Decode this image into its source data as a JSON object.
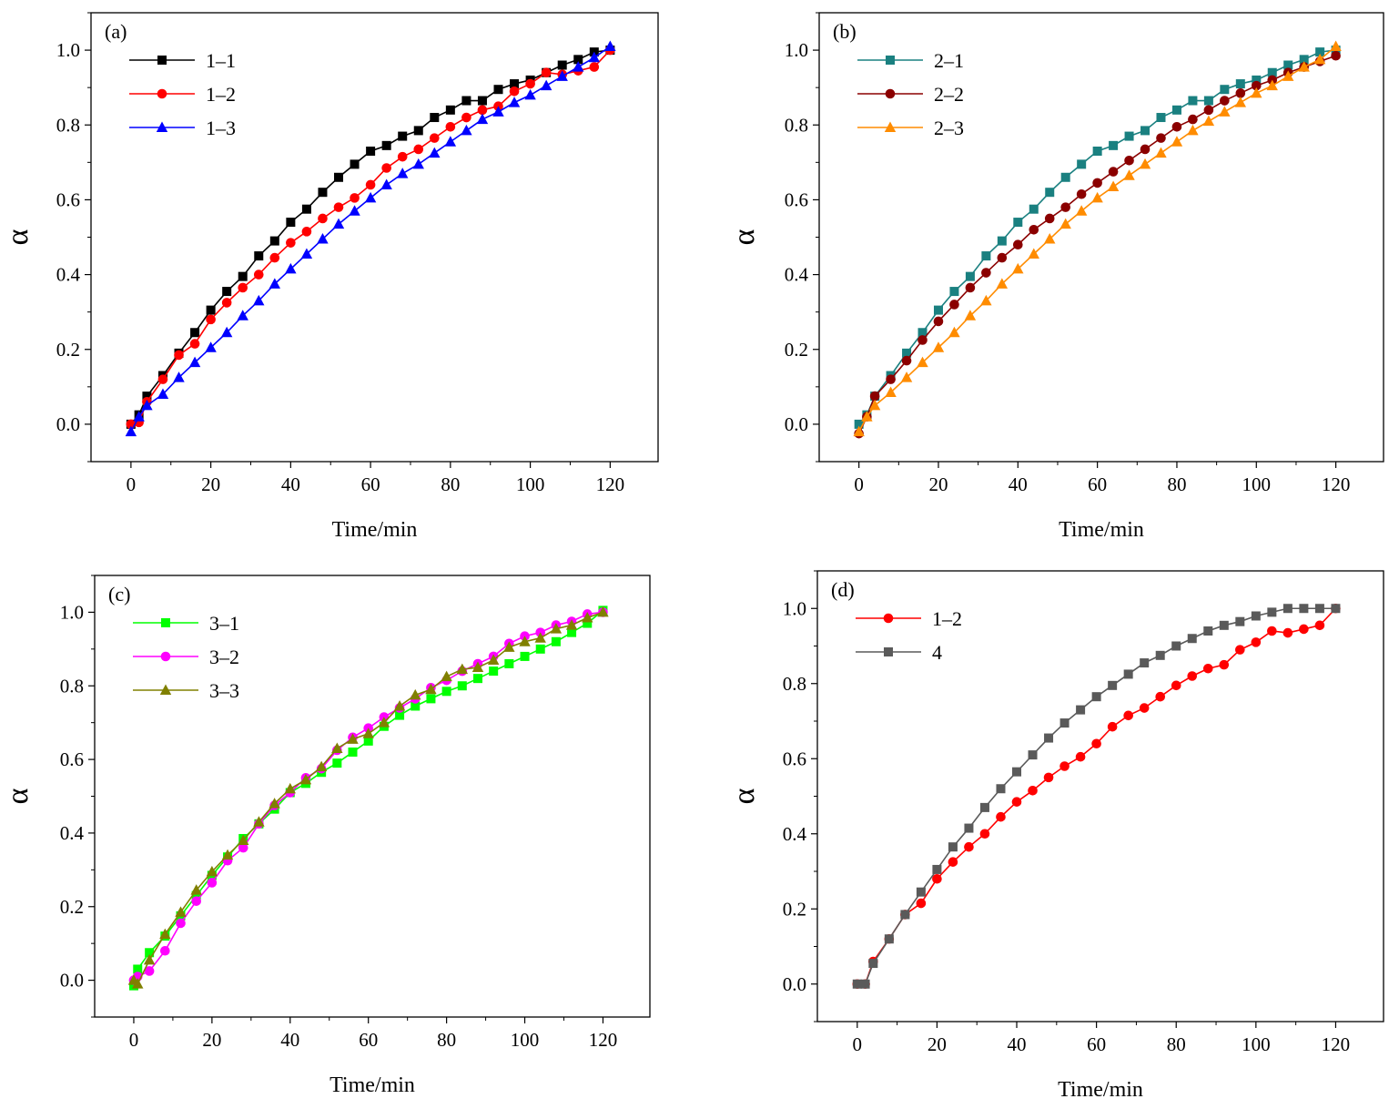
{
  "chart_data": [
    {
      "type": "line",
      "panel_label": "(a)",
      "xlabel": "Time/min",
      "ylabel": "α",
      "xlim": [
        -10,
        132
      ],
      "ylim": [
        -0.1,
        1.1
      ],
      "xticks": [
        "0",
        "20",
        "40",
        "60",
        "80",
        "100",
        "120"
      ],
      "yticks": [
        "0.0",
        "0.2",
        "0.4",
        "0.6",
        "0.8",
        "1.0"
      ],
      "legend_position": "top-left",
      "series": [
        {
          "name": "1–1",
          "color": "#000000",
          "marker": "square",
          "x": [
            0,
            2,
            4,
            8,
            12,
            16,
            20,
            24,
            28,
            32,
            36,
            40,
            44,
            48,
            52,
            56,
            60,
            64,
            68,
            72,
            76,
            80,
            84,
            88,
            92,
            96,
            100,
            104,
            108,
            112,
            116,
            120
          ],
          "y": [
            0.0,
            0.025,
            0.075,
            0.13,
            0.19,
            0.245,
            0.305,
            0.355,
            0.395,
            0.45,
            0.49,
            0.54,
            0.575,
            0.62,
            0.66,
            0.695,
            0.73,
            0.745,
            0.77,
            0.785,
            0.82,
            0.84,
            0.865,
            0.865,
            0.895,
            0.91,
            0.92,
            0.94,
            0.96,
            0.975,
            0.995,
            1.0
          ]
        },
        {
          "name": "1–2",
          "color": "#ff0000",
          "marker": "circle",
          "x": [
            0,
            2,
            4,
            8,
            12,
            16,
            20,
            24,
            28,
            32,
            36,
            40,
            44,
            48,
            52,
            56,
            60,
            64,
            68,
            72,
            76,
            80,
            84,
            88,
            92,
            96,
            100,
            104,
            108,
            112,
            116,
            120
          ],
          "y": [
            0.0,
            0.005,
            0.06,
            0.12,
            0.185,
            0.215,
            0.28,
            0.325,
            0.365,
            0.4,
            0.445,
            0.485,
            0.515,
            0.55,
            0.58,
            0.605,
            0.64,
            0.685,
            0.715,
            0.735,
            0.765,
            0.795,
            0.82,
            0.84,
            0.85,
            0.89,
            0.91,
            0.94,
            0.935,
            0.945,
            0.955,
            1.0
          ]
        },
        {
          "name": "1–3",
          "color": "#0000ff",
          "marker": "triangle",
          "x": [
            0,
            2,
            4,
            8,
            12,
            16,
            20,
            24,
            28,
            32,
            36,
            40,
            44,
            48,
            52,
            56,
            60,
            64,
            68,
            72,
            76,
            80,
            84,
            88,
            92,
            96,
            100,
            104,
            108,
            112,
            116,
            120
          ],
          "y": [
            -0.02,
            0.02,
            0.05,
            0.08,
            0.125,
            0.165,
            0.205,
            0.245,
            0.29,
            0.33,
            0.375,
            0.415,
            0.455,
            0.495,
            0.535,
            0.57,
            0.605,
            0.64,
            0.67,
            0.695,
            0.725,
            0.755,
            0.785,
            0.815,
            0.835,
            0.86,
            0.88,
            0.905,
            0.93,
            0.955,
            0.98,
            1.01
          ]
        }
      ]
    },
    {
      "type": "line",
      "panel_label": "(b)",
      "xlabel": "Time/min",
      "ylabel": "α",
      "xlim": [
        -10,
        132
      ],
      "ylim": [
        -0.1,
        1.1
      ],
      "xticks": [
        "0",
        "20",
        "40",
        "60",
        "80",
        "100",
        "120"
      ],
      "yticks": [
        "0.0",
        "0.2",
        "0.4",
        "0.6",
        "0.8",
        "1.0"
      ],
      "legend_position": "top-left",
      "series": [
        {
          "name": "2–1",
          "color": "#1a8080",
          "marker": "square",
          "x": [
            0,
            2,
            4,
            8,
            12,
            16,
            20,
            24,
            28,
            32,
            36,
            40,
            44,
            48,
            52,
            56,
            60,
            64,
            68,
            72,
            76,
            80,
            84,
            88,
            92,
            96,
            100,
            104,
            108,
            112,
            116,
            120
          ],
          "y": [
            0.0,
            0.025,
            0.075,
            0.13,
            0.19,
            0.245,
            0.305,
            0.355,
            0.395,
            0.45,
            0.49,
            0.54,
            0.575,
            0.62,
            0.66,
            0.695,
            0.73,
            0.745,
            0.77,
            0.785,
            0.82,
            0.84,
            0.865,
            0.865,
            0.895,
            0.91,
            0.92,
            0.94,
            0.96,
            0.975,
            0.995,
            1.0
          ]
        },
        {
          "name": "2–2",
          "color": "#8b0000",
          "marker": "circle",
          "x": [
            0,
            2,
            4,
            8,
            12,
            16,
            20,
            24,
            28,
            32,
            36,
            40,
            44,
            48,
            52,
            56,
            60,
            64,
            68,
            72,
            76,
            80,
            84,
            88,
            92,
            96,
            100,
            104,
            108,
            112,
            116,
            120
          ],
          "y": [
            -0.025,
            0.02,
            0.075,
            0.12,
            0.17,
            0.225,
            0.275,
            0.32,
            0.365,
            0.405,
            0.445,
            0.48,
            0.52,
            0.55,
            0.58,
            0.615,
            0.645,
            0.675,
            0.705,
            0.735,
            0.765,
            0.795,
            0.815,
            0.84,
            0.865,
            0.885,
            0.905,
            0.92,
            0.94,
            0.955,
            0.97,
            0.985
          ]
        },
        {
          "name": "2–3",
          "color": "#ff8c00",
          "marker": "triangle",
          "x": [
            0,
            2,
            4,
            8,
            12,
            16,
            20,
            24,
            28,
            32,
            36,
            40,
            44,
            48,
            52,
            56,
            60,
            64,
            68,
            72,
            76,
            80,
            84,
            88,
            92,
            96,
            100,
            104,
            108,
            112,
            116,
            120
          ],
          "y": [
            -0.02,
            0.02,
            0.05,
            0.085,
            0.125,
            0.165,
            0.205,
            0.245,
            0.29,
            0.33,
            0.375,
            0.415,
            0.455,
            0.495,
            0.535,
            0.57,
            0.605,
            0.635,
            0.665,
            0.695,
            0.725,
            0.755,
            0.785,
            0.81,
            0.835,
            0.86,
            0.885,
            0.905,
            0.93,
            0.955,
            0.975,
            1.01
          ]
        }
      ]
    },
    {
      "type": "line",
      "panel_label": "(c)",
      "xlabel": "Time/min",
      "ylabel": "α",
      "xlim": [
        -10,
        132
      ],
      "ylim": [
        -0.1,
        1.1
      ],
      "xticks": [
        "0",
        "20",
        "40",
        "60",
        "80",
        "100",
        "120"
      ],
      "yticks": [
        "0.0",
        "0.2",
        "0.4",
        "0.6",
        "0.8",
        "1.0"
      ],
      "legend_position": "top-left",
      "series": [
        {
          "name": "3–1",
          "color": "#00ff00",
          "marker": "square",
          "x": [
            0,
            1,
            4,
            8,
            12,
            16,
            20,
            24,
            28,
            32,
            36,
            40,
            44,
            48,
            52,
            56,
            60,
            64,
            68,
            72,
            76,
            80,
            84,
            88,
            92,
            96,
            100,
            104,
            108,
            112,
            116,
            120
          ],
          "y": [
            -0.015,
            0.03,
            0.075,
            0.12,
            0.175,
            0.23,
            0.285,
            0.335,
            0.385,
            0.425,
            0.465,
            0.51,
            0.535,
            0.565,
            0.59,
            0.62,
            0.65,
            0.69,
            0.72,
            0.745,
            0.765,
            0.785,
            0.8,
            0.82,
            0.84,
            0.86,
            0.88,
            0.9,
            0.92,
            0.945,
            0.97,
            1.005
          ]
        },
        {
          "name": "3–2",
          "color": "#ff00ff",
          "marker": "circle",
          "x": [
            0,
            1,
            4,
            8,
            12,
            16,
            20,
            24,
            28,
            32,
            36,
            40,
            44,
            48,
            52,
            56,
            60,
            64,
            68,
            72,
            76,
            80,
            84,
            88,
            92,
            96,
            100,
            104,
            108,
            112,
            116,
            120
          ],
          "y": [
            0.0,
            0.01,
            0.025,
            0.08,
            0.155,
            0.215,
            0.265,
            0.325,
            0.36,
            0.425,
            0.475,
            0.51,
            0.55,
            0.575,
            0.625,
            0.66,
            0.685,
            0.715,
            0.74,
            0.765,
            0.795,
            0.815,
            0.84,
            0.86,
            0.88,
            0.915,
            0.935,
            0.945,
            0.965,
            0.975,
            0.995,
            1.0
          ]
        },
        {
          "name": "3–3",
          "color": "#808000",
          "marker": "triangle",
          "x": [
            0,
            1,
            4,
            8,
            12,
            16,
            20,
            24,
            28,
            32,
            36,
            40,
            44,
            48,
            52,
            56,
            60,
            64,
            68,
            72,
            76,
            80,
            84,
            88,
            92,
            96,
            100,
            104,
            108,
            112,
            116,
            120
          ],
          "y": [
            0.0,
            -0.01,
            0.055,
            0.125,
            0.185,
            0.245,
            0.295,
            0.34,
            0.38,
            0.43,
            0.48,
            0.52,
            0.545,
            0.58,
            0.63,
            0.655,
            0.67,
            0.7,
            0.745,
            0.775,
            0.79,
            0.825,
            0.845,
            0.85,
            0.87,
            0.905,
            0.92,
            0.93,
            0.955,
            0.965,
            0.985,
            1.0
          ]
        }
      ]
    },
    {
      "type": "line",
      "panel_label": "(d)",
      "xlabel": "Time/min",
      "ylabel": "α",
      "xlim": [
        -10,
        132
      ],
      "ylim": [
        -0.1,
        1.1
      ],
      "xticks": [
        "0",
        "20",
        "40",
        "60",
        "80",
        "100",
        "120"
      ],
      "yticks": [
        "0.0",
        "0.2",
        "0.4",
        "0.6",
        "0.8",
        "1.0"
      ],
      "legend_position": "top-left",
      "series": [
        {
          "name": "1–2",
          "color": "#ff0000",
          "marker": "circle",
          "x": [
            0,
            2,
            4,
            8,
            12,
            16,
            20,
            24,
            28,
            32,
            36,
            40,
            44,
            48,
            52,
            56,
            60,
            64,
            68,
            72,
            76,
            80,
            84,
            88,
            92,
            96,
            100,
            104,
            108,
            112,
            116,
            120
          ],
          "y": [
            0.0,
            0.0,
            0.06,
            0.12,
            0.185,
            0.215,
            0.28,
            0.325,
            0.365,
            0.4,
            0.445,
            0.485,
            0.515,
            0.55,
            0.58,
            0.605,
            0.64,
            0.685,
            0.715,
            0.735,
            0.765,
            0.795,
            0.82,
            0.84,
            0.85,
            0.89,
            0.91,
            0.94,
            0.935,
            0.945,
            0.955,
            1.0
          ]
        },
        {
          "name": "4",
          "color": "#5a5a5a",
          "marker": "square",
          "x": [
            0,
            2,
            4,
            8,
            12,
            16,
            20,
            24,
            28,
            32,
            36,
            40,
            44,
            48,
            52,
            56,
            60,
            64,
            68,
            72,
            76,
            80,
            84,
            88,
            92,
            96,
            100,
            104,
            108,
            112,
            116,
            120
          ],
          "y": [
            0.0,
            0.0,
            0.055,
            0.12,
            0.185,
            0.245,
            0.305,
            0.365,
            0.415,
            0.47,
            0.52,
            0.565,
            0.61,
            0.655,
            0.695,
            0.73,
            0.765,
            0.795,
            0.825,
            0.855,
            0.875,
            0.9,
            0.92,
            0.94,
            0.955,
            0.965,
            0.98,
            0.99,
            1.0,
            1.0,
            1.0,
            1.0
          ]
        }
      ]
    }
  ]
}
